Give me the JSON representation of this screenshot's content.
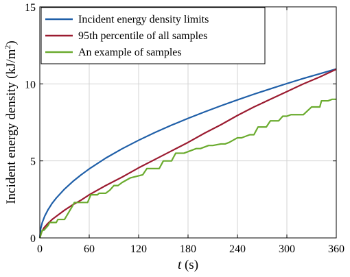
{
  "chart_data": {
    "type": "line",
    "title": "",
    "xlabel": {
      "var": "t",
      "unit": " (s)"
    },
    "ylabel": {
      "main": "Incident energy density (kJ/m",
      "sup": "2",
      "close": ")"
    },
    "xlim": [
      0,
      360
    ],
    "ylim": [
      0,
      15
    ],
    "xticks": [
      0,
      60,
      120,
      180,
      240,
      300,
      360
    ],
    "yticks": [
      0,
      5,
      10,
      15
    ],
    "grid": true,
    "legend_position": "top-left",
    "series": [
      {
        "name": "Incident energy density limits",
        "color": "#1f5fa8",
        "x": [
          0,
          1,
          3,
          6,
          10,
          15,
          20,
          30,
          40,
          50,
          60,
          80,
          100,
          120,
          140,
          160,
          180,
          200,
          220,
          240,
          260,
          280,
          300,
          320,
          340,
          360
        ],
        "y": [
          0,
          0.58,
          1.0,
          1.42,
          1.83,
          2.25,
          2.59,
          3.17,
          3.66,
          4.09,
          4.48,
          5.18,
          5.79,
          6.34,
          6.85,
          7.32,
          7.76,
          8.18,
          8.58,
          8.96,
          9.33,
          9.68,
          10.02,
          10.35,
          10.66,
          10.97
        ]
      },
      {
        "name": "95th percentile of all samples",
        "color": "#9b1b30",
        "x": [
          0,
          2,
          5,
          10,
          15,
          20,
          30,
          40,
          50,
          60,
          80,
          100,
          120,
          140,
          160,
          180,
          200,
          220,
          240,
          260,
          280,
          300,
          320,
          340,
          350,
          360
        ],
        "y": [
          0,
          0.35,
          0.65,
          0.95,
          1.2,
          1.4,
          1.8,
          2.15,
          2.45,
          2.8,
          3.4,
          3.95,
          4.55,
          5.1,
          5.65,
          6.2,
          6.8,
          7.35,
          7.95,
          8.5,
          9.0,
          9.5,
          10.0,
          10.45,
          10.7,
          10.95
        ]
      },
      {
        "name": "An example of samples",
        "color": "#6aab2e",
        "x": [
          0,
          3,
          5,
          10,
          12,
          20,
          22,
          28,
          30,
          40,
          42,
          45,
          55,
          58,
          62,
          70,
          72,
          80,
          85,
          90,
          95,
          100,
          110,
          125,
          130,
          145,
          150,
          160,
          165,
          175,
          180,
          190,
          195,
          205,
          210,
          220,
          225,
          230,
          240,
          245,
          255,
          260,
          265,
          275,
          280,
          290,
          295,
          300,
          305,
          315,
          320,
          330,
          335,
          340,
          342,
          350,
          355,
          360
        ],
        "y": [
          0,
          0.5,
          0.5,
          0.8,
          1.0,
          1.0,
          1.2,
          1.2,
          1.2,
          2.1,
          2.3,
          2.3,
          2.3,
          2.3,
          2.8,
          2.8,
          2.9,
          2.9,
          3.1,
          3.4,
          3.4,
          3.6,
          3.9,
          4.1,
          4.5,
          4.5,
          5.0,
          5.0,
          5.5,
          5.5,
          5.6,
          5.8,
          5.8,
          6.0,
          6.0,
          6.1,
          6.1,
          6.2,
          6.5,
          6.5,
          6.7,
          6.7,
          7.2,
          7.2,
          7.6,
          7.6,
          7.9,
          7.9,
          8.0,
          8.0,
          8.0,
          8.5,
          8.5,
          8.5,
          8.9,
          8.9,
          9.0,
          9.0
        ]
      }
    ]
  }
}
